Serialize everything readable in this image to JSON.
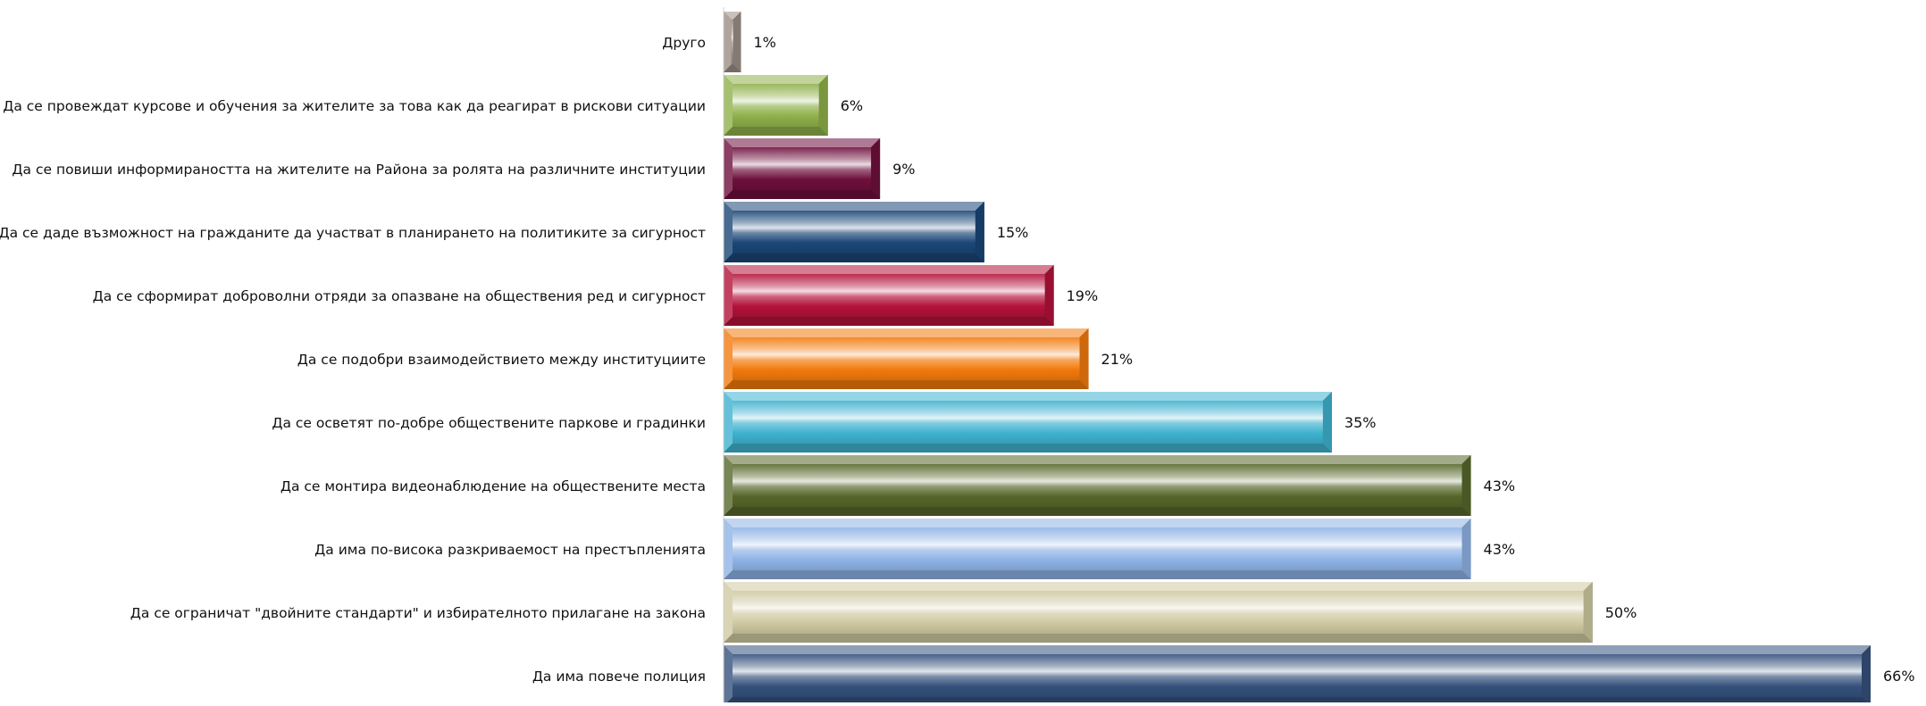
{
  "chart_data": {
    "type": "bar",
    "orientation": "horizontal",
    "categories": [
      "Друго",
      "Да се провеждат курсове и обучения за жителите за това как да реагират в рискови ситуации",
      "Да се повиши информираността на жителите на Района за ролята на различните институции",
      "Да се даде възможност на гражданите да участват в планирането на политиките за сигурност",
      "Да се сформират доброволни отряди за опазване на обществения ред и сигурност",
      "Да се подобри взаимодействието между институциите",
      "Да се осветят по-добре обществените паркове и градинки",
      "Да се монтира видеонаблюдение на обществените места",
      "Да има по-висока разкриваемост на престъпленията",
      "Да се ограничат \"двойните стандарти\" и избирателното прилагане на закона",
      "Да има повече полиция"
    ],
    "values": [
      1,
      6,
      9,
      15,
      19,
      21,
      35,
      43,
      43,
      50,
      66
    ],
    "value_labels": [
      "1%",
      "6%",
      "9%",
      "15%",
      "19%",
      "21%",
      "35%",
      "43%",
      "43%",
      "50%",
      "66%"
    ],
    "colors": [
      "#9c8f86",
      "#8fb04a",
      "#6e0f3c",
      "#1a4677",
      "#b3123a",
      "#f27a0c",
      "#3fb2cf",
      "#56672a",
      "#8fb3e6",
      "#cfc9a1",
      "#34517c"
    ],
    "xlim": [
      0,
      66
    ],
    "grid": false,
    "legend": "none"
  }
}
